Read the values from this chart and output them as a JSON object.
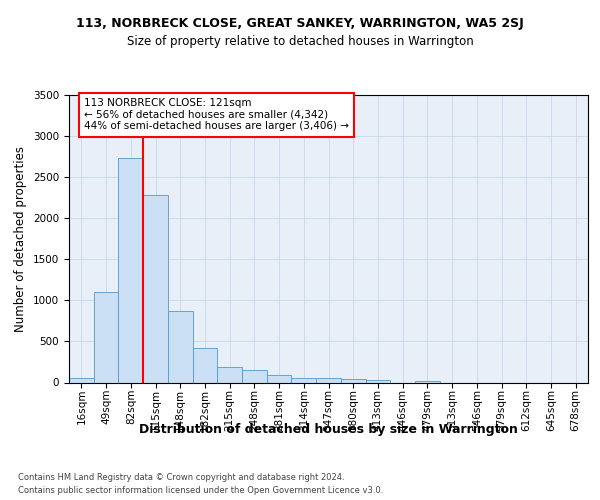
{
  "title_line1": "113, NORBRECK CLOSE, GREAT SANKEY, WARRINGTON, WA5 2SJ",
  "title_line2": "Size of property relative to detached houses in Warrington",
  "xlabel": "Distribution of detached houses by size in Warrington",
  "ylabel": "Number of detached properties",
  "footer_line1": "Contains HM Land Registry data © Crown copyright and database right 2024.",
  "footer_line2": "Contains public sector information licensed under the Open Government Licence v3.0.",
  "bin_labels": [
    "16sqm",
    "49sqm",
    "82sqm",
    "115sqm",
    "148sqm",
    "182sqm",
    "215sqm",
    "248sqm",
    "281sqm",
    "314sqm",
    "347sqm",
    "380sqm",
    "413sqm",
    "446sqm",
    "479sqm",
    "513sqm",
    "546sqm",
    "579sqm",
    "612sqm",
    "645sqm",
    "678sqm"
  ],
  "bar_values": [
    50,
    1100,
    2730,
    2280,
    870,
    415,
    185,
    155,
    90,
    60,
    55,
    40,
    35,
    0,
    20,
    0,
    0,
    0,
    0,
    0,
    0
  ],
  "bar_color": "#cce0f5",
  "bar_edge_color": "#5599cc",
  "grid_color": "#c8d8ec",
  "background_color": "#e8eff8",
  "red_line_x": 2.5,
  "annotation_text": "113 NORBRECK CLOSE: 121sqm\n← 56% of detached houses are smaller (4,342)\n44% of semi-detached houses are larger (3,406) →",
  "annotation_box_color": "white",
  "annotation_box_edge": "red",
  "ylim": [
    0,
    3500
  ],
  "yticks": [
    0,
    500,
    1000,
    1500,
    2000,
    2500,
    3000,
    3500
  ],
  "title1_fontsize": 9,
  "title2_fontsize": 8.5,
  "ylabel_fontsize": 8.5,
  "xlabel_fontsize": 9,
  "tick_fontsize": 7.5,
  "annotation_fontsize": 7.5,
  "footer_fontsize": 6.0
}
